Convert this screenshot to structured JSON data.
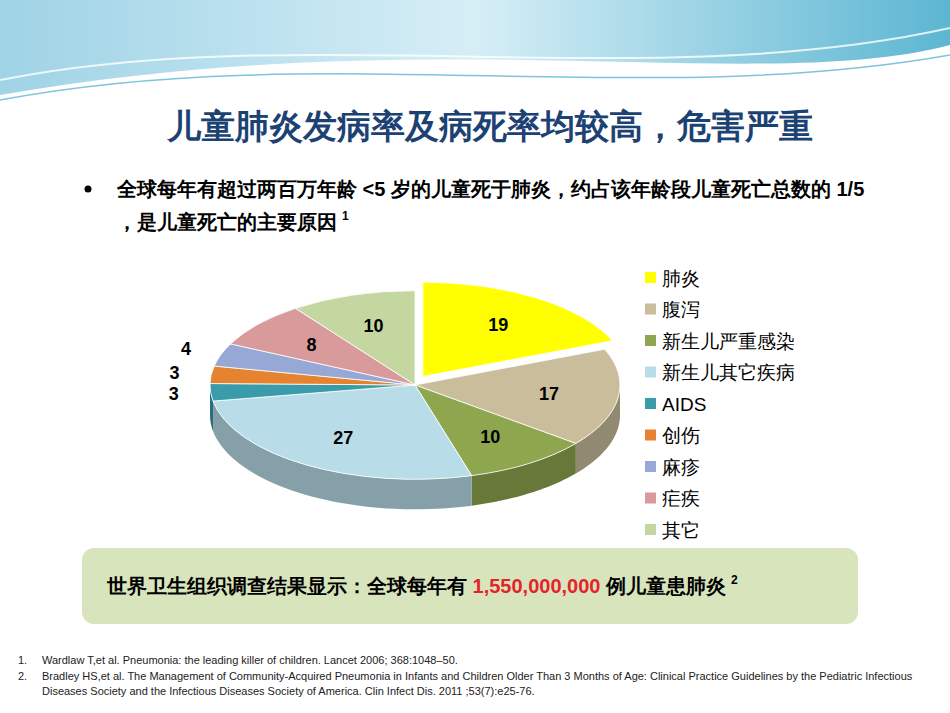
{
  "slide": {
    "title": "儿童肺炎发病率及病死率均较高，危害严重",
    "bullet": "全球每年有超过两百万年龄 <5 岁的儿童死于肺炎，约占该年龄段儿童死亡总数的 1/5 ，是儿童死亡的主要原因",
    "bullet_ref": "1",
    "note_text_before": "世界卫生组织调查结果显示：全球每年有 ",
    "note_number": "1,550,000,000",
    "note_text_after": " 例儿童患肺炎",
    "note_ref": "2",
    "references": [
      {
        "number": "1.",
        "text": "Wardlaw T,et al. Pneumonia: the leading killer of children. Lancet 2006; 368:1048–50."
      },
      {
        "number": "2.",
        "text": "Bradley HS,et al. The Management of Community-Acquired Pneumonia in Infants and Children Older Than 3 Months of Age: Clinical Practice Guidelines by the Pediatric Infectious Diseases Society and the Infectious Diseases Society of America. Clin Infect Dis. 2011 ;53(7):e25-76."
      }
    ]
  },
  "chart_data": {
    "type": "pie",
    "categories": [
      "肺炎",
      "腹泻",
      "新生儿严重感染",
      "新生儿其它疾病",
      "AIDS",
      "创伤",
      "麻疹",
      "疟疾",
      "其它"
    ],
    "values": [
      19,
      17,
      10,
      27,
      3,
      3,
      4,
      8,
      10
    ],
    "colors": [
      "#ffff00",
      "#c9bd9c",
      "#8ea64e",
      "#b8dde9",
      "#3a9bab",
      "#e58331",
      "#97a7d6",
      "#d99a9c",
      "#c5d7a1"
    ],
    "data_labels": true,
    "legend": "right"
  }
}
